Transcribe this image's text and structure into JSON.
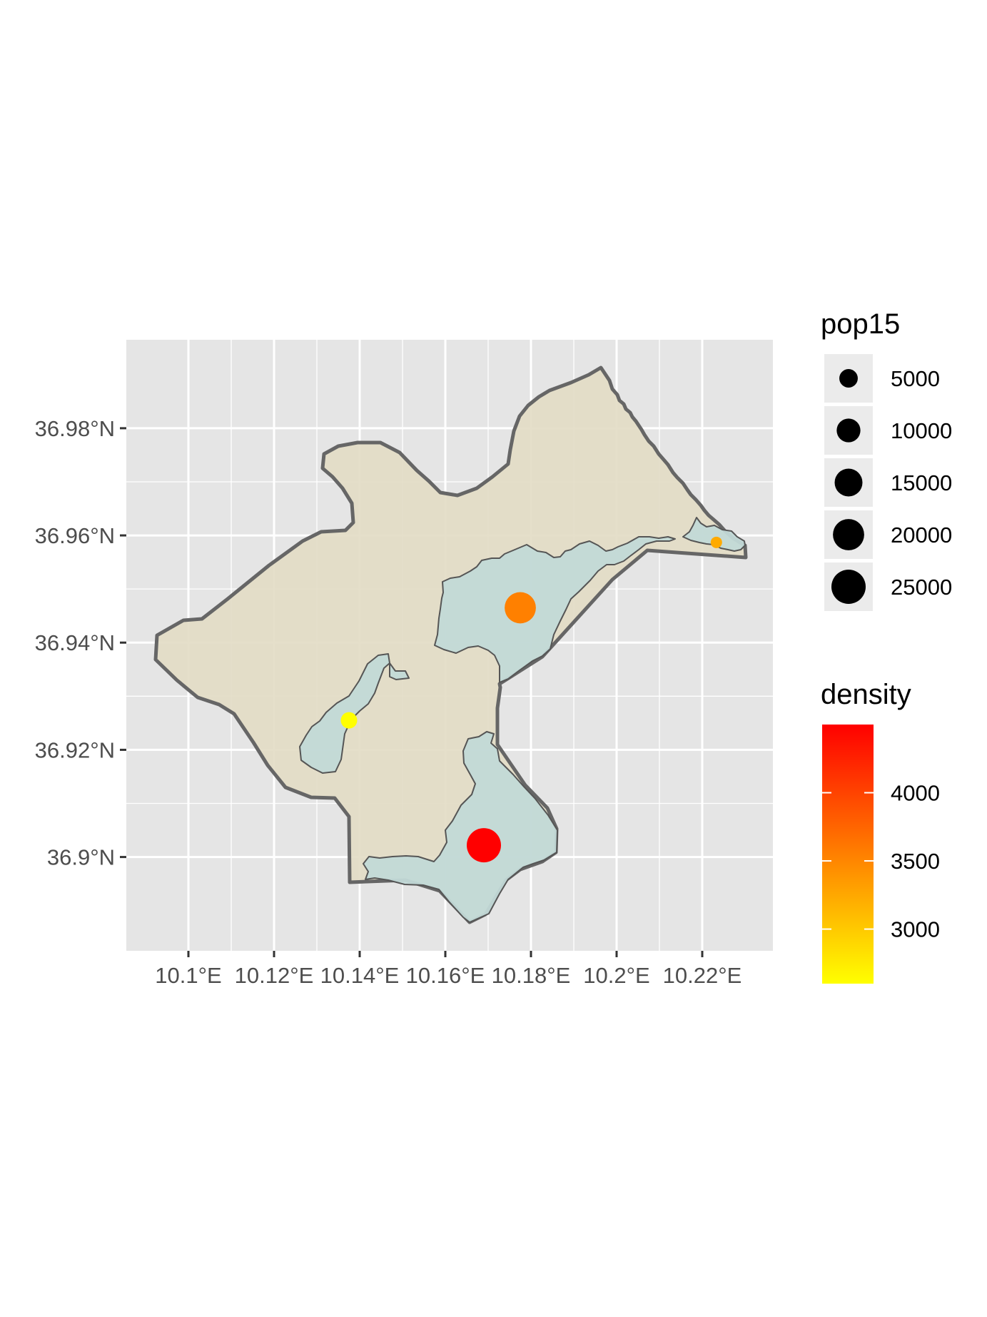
{
  "chart_data": {
    "type": "map",
    "title": "",
    "xlabel": "",
    "ylabel": "",
    "xlim": [
      10.0855,
      10.2365
    ],
    "ylim": [
      36.8825,
      36.9965
    ],
    "grid": true,
    "x_ticks": [
      {
        "value": 10.1,
        "label": "10.1°E"
      },
      {
        "value": 10.12,
        "label": "10.12°E"
      },
      {
        "value": 10.14,
        "label": "10.14°E"
      },
      {
        "value": 10.16,
        "label": "10.16°E"
      },
      {
        "value": 10.18,
        "label": "10.18°E"
      },
      {
        "value": 10.2,
        "label": "10.2°E"
      },
      {
        "value": 10.22,
        "label": "10.22°E"
      }
    ],
    "y_ticks": [
      {
        "value": 36.9,
        "label": "36.9°N"
      },
      {
        "value": 36.92,
        "label": "36.92°N"
      },
      {
        "value": 36.94,
        "label": "36.94°N"
      },
      {
        "value": 36.96,
        "label": "36.96°N"
      },
      {
        "value": 36.98,
        "label": "36.98°N"
      }
    ],
    "points": [
      {
        "lon": 10.1375,
        "lat": 36.9255,
        "pop15": 3500,
        "density": 2600,
        "color": "#ffff00"
      },
      {
        "lon": 10.1775,
        "lat": 36.9465,
        "pop15": 20000,
        "density": 3500,
        "color": "#ff8000"
      },
      {
        "lon": 10.169,
        "lat": 36.9022,
        "pop15": 25000,
        "density": 4500,
        "color": "#ff0000"
      },
      {
        "lon": 10.2233,
        "lat": 36.9587,
        "pop15": 1000,
        "density": 3250,
        "color": "#ffaa00"
      }
    ],
    "legend_size": {
      "title": "pop15",
      "placement": "right",
      "entries": [
        {
          "label": "5000",
          "value": 5000
        },
        {
          "label": "10000",
          "value": 10000
        },
        {
          "label": "15000",
          "value": 15000
        },
        {
          "label": "20000",
          "value": 20000
        },
        {
          "label": "25000",
          "value": 25000
        }
      ]
    },
    "legend_color": {
      "title": "density",
      "placement": "right",
      "low_color": "#ffff00",
      "high_color": "#ff0000",
      "range": [
        2600,
        4500
      ],
      "ticks": [
        {
          "label": "3000",
          "value": 3000
        },
        {
          "label": "3500",
          "value": 3500
        },
        {
          "label": "4000",
          "value": 4000
        }
      ]
    },
    "colors": {
      "panel_background": "#e5e5e5",
      "grid": "#ffffff",
      "outer_fill": "#e2dbc4",
      "outer_stroke": "#666666",
      "inner_fill": "#c2d9d7",
      "inner_stroke": "#555555"
    }
  }
}
